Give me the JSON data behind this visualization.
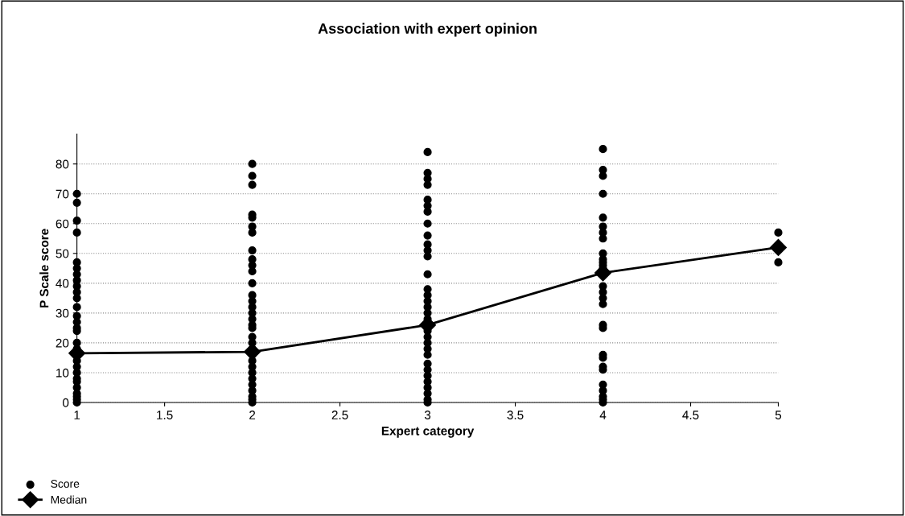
{
  "chart_data": {
    "type": "scatter",
    "title": "Association with expert opinion",
    "xlabel": "Expert category",
    "ylabel": "P Scale score",
    "xlim": [
      1,
      5
    ],
    "xticks": [
      1,
      1.5,
      2,
      2.5,
      3,
      3.5,
      4,
      4.5,
      5
    ],
    "ylim": [
      0,
      90
    ],
    "yticks": [
      0,
      10,
      20,
      30,
      40,
      50,
      60,
      70,
      80
    ],
    "grid": "y",
    "legend": "bottom left",
    "series": [
      {
        "name": "Score",
        "color": "#000000",
        "marker": "circle",
        "x": [
          1,
          1,
          1,
          1,
          1,
          1,
          1,
          1,
          1,
          1,
          1,
          1,
          1,
          1,
          1,
          1,
          1,
          1,
          1,
          1,
          1,
          1,
          1,
          1,
          1,
          1,
          1,
          1,
          2,
          2,
          2,
          2,
          2,
          2,
          2,
          2,
          2,
          2,
          2,
          2,
          2,
          2,
          2,
          2,
          2,
          2,
          2,
          2,
          2,
          2,
          2,
          2,
          2,
          2,
          2,
          2,
          2,
          2,
          2,
          2,
          3,
          3,
          3,
          3,
          3,
          3,
          3,
          3,
          3,
          3,
          3,
          3,
          3,
          3,
          3,
          3,
          3,
          3,
          3,
          3,
          3,
          3,
          3,
          3,
          3,
          3,
          3,
          3,
          3,
          3,
          3,
          3,
          4,
          4,
          4,
          4,
          4,
          4,
          4,
          4,
          4,
          4,
          4,
          4,
          4,
          4,
          4,
          4,
          4,
          4,
          4,
          4,
          4,
          4,
          4,
          4,
          4,
          4,
          4,
          4,
          5,
          5
        ],
        "values": [
          70,
          67,
          61,
          57,
          47,
          45,
          43,
          41,
          39,
          37,
          35,
          32,
          29,
          27,
          25,
          24,
          20,
          18,
          14,
          12,
          10,
          8,
          7,
          5,
          3,
          2,
          1,
          0,
          80,
          76,
          73,
          63,
          62,
          59,
          57,
          51,
          48,
          46,
          44,
          40,
          36,
          34,
          32,
          30,
          28,
          26,
          25,
          22,
          20,
          18,
          16,
          14,
          12,
          10,
          8,
          6,
          4,
          2,
          1,
          0,
          84,
          77,
          75,
          73,
          68,
          66,
          64,
          60,
          56,
          53,
          51,
          49,
          43,
          38,
          36,
          34,
          32,
          30,
          28,
          24,
          22,
          20,
          18,
          16,
          13,
          11,
          9,
          7,
          5,
          3,
          1,
          0,
          85,
          78,
          76,
          70,
          62,
          59,
          57,
          55,
          50,
          48,
          47,
          46,
          45,
          39,
          37,
          35,
          33,
          26,
          25,
          16,
          15,
          12,
          11,
          6,
          4,
          2,
          1,
          0,
          57,
          47
        ]
      },
      {
        "name": "Median",
        "type": "line",
        "color": "#000000",
        "marker": "diamond",
        "line_style": "solid",
        "x": [
          1,
          2,
          3,
          4,
          5
        ],
        "values": [
          16.5,
          17,
          26,
          43.5,
          52
        ]
      }
    ]
  }
}
